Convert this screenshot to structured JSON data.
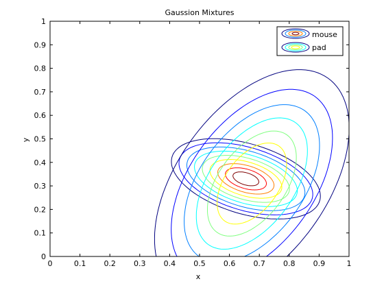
{
  "chart_data": {
    "type": "contour",
    "title": "Gaussion Mixtures",
    "xlabel": "x",
    "ylabel": "y",
    "xlim": [
      0,
      1
    ],
    "ylim": [
      0,
      1
    ],
    "xticks": [
      "0",
      "0.1",
      "0.2",
      "0.3",
      "0.4",
      "0.5",
      "0.6",
      "0.7",
      "0.8",
      "0.9",
      "1"
    ],
    "yticks": [
      "0",
      "0.1",
      "0.2",
      "0.3",
      "0.4",
      "0.5",
      "0.6",
      "0.7",
      "0.8",
      "0.9",
      "1"
    ],
    "grid": false,
    "legend_position": "top-right",
    "level_colors": [
      "#00007f",
      "#0000ff",
      "#007fff",
      "#00ffff",
      "#7fff7f",
      "#ffff00",
      "#ff7f00",
      "#ff0000",
      "#7f0000"
    ],
    "series": [
      {
        "name": "mouse",
        "center": [
          0.655,
          0.33
        ],
        "shape": "ellipse",
        "principal_axis_angle_deg": -24,
        "contours": [
          {
            "rx": 0.265,
            "ry": 0.145,
            "color": "#00007f"
          },
          {
            "rx": 0.238,
            "ry": 0.13,
            "color": "#0000ff"
          },
          {
            "rx": 0.21,
            "ry": 0.115,
            "color": "#007fff"
          },
          {
            "rx": 0.183,
            "ry": 0.1,
            "color": "#00ffff"
          },
          {
            "rx": 0.155,
            "ry": 0.085,
            "color": "#7fff7f"
          },
          {
            "rx": 0.128,
            "ry": 0.07,
            "color": "#ffff00"
          },
          {
            "rx": 0.1,
            "ry": 0.055,
            "color": "#ff7f00"
          },
          {
            "rx": 0.073,
            "ry": 0.04,
            "color": "#ff0000"
          },
          {
            "rx": 0.046,
            "ry": 0.025,
            "color": "#7f0000"
          }
        ]
      },
      {
        "name": "pad",
        "center": [
          0.675,
          0.31
        ],
        "shape": "ellipse",
        "principal_axis_angle_deg": 65,
        "contours": [
          {
            "rx": 0.52,
            "ry": 0.265,
            "color": "#00007f"
          },
          {
            "rx": 0.43,
            "ry": 0.22,
            "color": "#0000ff"
          },
          {
            "rx": 0.36,
            "ry": 0.185,
            "color": "#007fff"
          },
          {
            "rx": 0.3,
            "ry": 0.15,
            "color": "#00ffff"
          },
          {
            "rx": 0.24,
            "ry": 0.12,
            "color": "#7fff7f"
          },
          {
            "rx": 0.185,
            "ry": 0.095,
            "color": "#ffff00"
          }
        ]
      }
    ]
  }
}
